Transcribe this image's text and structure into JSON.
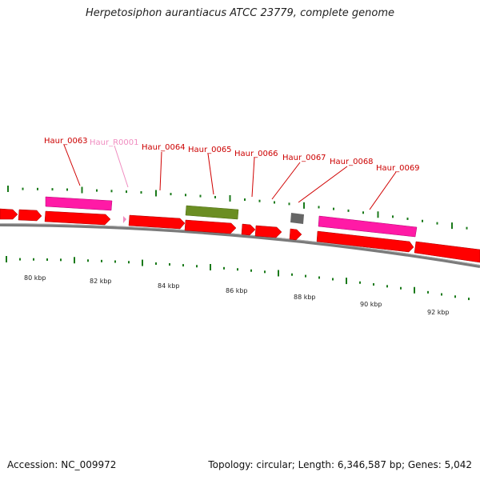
{
  "title": "Herpetosiphon aurantiacus ATCC 23779, complete genome",
  "footer": {
    "accession": "Accession: NC_009972",
    "summary": "Topology: circular; Length: 6,346,587 bp; Genes: 5,042"
  },
  "colors": {
    "cds": "#ff0000",
    "rna": "#ff1aa6",
    "rrna_label": "#f08cc0",
    "pseudo": "#6b8e23",
    "misc": "#666666",
    "tick": "#1a7a1a",
    "backbone": "#808080",
    "label": "#cc0000"
  },
  "axis": {
    "unit": "kbp",
    "tick_labels": [
      "80 kbp",
      "82 kbp",
      "84 kbp",
      "86 kbp",
      "88 kbp",
      "90 kbp",
      "92 kbp"
    ]
  },
  "gene_labels": [
    {
      "name": "Haur_0063",
      "type": "cds"
    },
    {
      "name": "Haur_R0001",
      "type": "rna"
    },
    {
      "name": "Haur_0064",
      "type": "cds"
    },
    {
      "name": "Haur_0065",
      "type": "cds"
    },
    {
      "name": "Haur_0066",
      "type": "cds"
    },
    {
      "name": "Haur_0067",
      "type": "cds"
    },
    {
      "name": "Haur_0068",
      "type": "cds"
    },
    {
      "name": "Haur_0069",
      "type": "cds"
    }
  ]
}
